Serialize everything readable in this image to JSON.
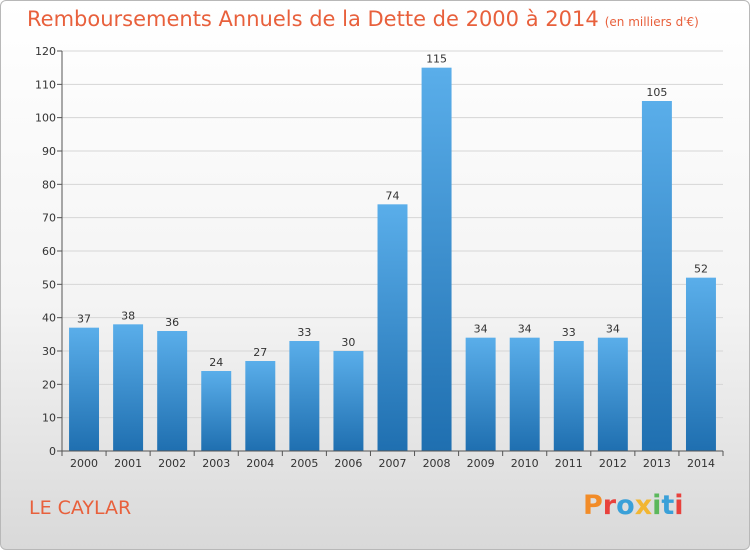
{
  "title": "Remboursements Annuels de la Dette de 2000 à 2014",
  "subtitle": "(en milliers d'€)",
  "city": "LE CAYLAR",
  "logo": {
    "text": "Proxiti",
    "colors": [
      "#f28c28",
      "#e8413c",
      "#3aa0d8",
      "#f2b632",
      "#5cb85c",
      "#3aa0d8",
      "#e8413c"
    ]
  },
  "colors": {
    "bar_top": "#5aaeea",
    "bar_bottom": "#1f6fb0",
    "accent": "#e8603c"
  },
  "chart_data": {
    "type": "bar",
    "categories": [
      "2000",
      "2001",
      "2002",
      "2003",
      "2004",
      "2005",
      "2006",
      "2007",
      "2008",
      "2009",
      "2010",
      "2011",
      "2012",
      "2013",
      "2014"
    ],
    "values": [
      37,
      38,
      36,
      24,
      27,
      33,
      30,
      74,
      115,
      34,
      34,
      33,
      34,
      105,
      52
    ],
    "title": "Remboursements Annuels de la Dette de 2000 à 2014",
    "xlabel": "",
    "ylabel": "",
    "ylim": [
      0,
      120
    ],
    "yticks": [
      0,
      10,
      20,
      30,
      40,
      50,
      60,
      70,
      80,
      90,
      100,
      110,
      120
    ],
    "grid": true,
    "legend": "none"
  }
}
